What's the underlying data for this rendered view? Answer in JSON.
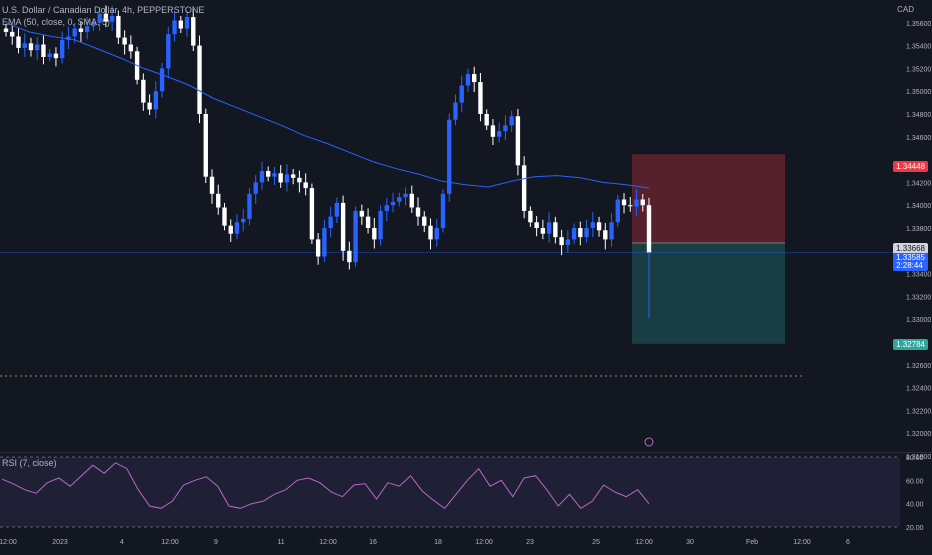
{
  "legend": {
    "main": "U.S. Dollar / Canadian Dollar, 4h, PEPPERSTONE",
    "ema": "EMA (50, close, 0, SMA, 5)",
    "rsi": "RSI (7, close)"
  },
  "price_axis": {
    "currency": "CAD",
    "ticks": [
      "1.35600",
      "1.35400",
      "1.35200",
      "1.35000",
      "1.34800",
      "1.34600",
      "1.34200",
      "1.34000",
      "1.33800",
      "1.33400",
      "1.33200",
      "1.33000",
      "1.32600",
      "1.32400",
      "1.32200",
      "1.32000",
      "1.31800"
    ]
  },
  "rsi_axis": {
    "ticks": [
      "80.00",
      "60.00",
      "40.00",
      "20.00"
    ]
  },
  "time_axis": {
    "ticks": [
      "12:00",
      "2023",
      "4",
      "12:00",
      "9",
      "11",
      "12:00",
      "16",
      "18",
      "12:00",
      "23",
      "25",
      "12:00",
      "30",
      "Feb",
      "12:00",
      "6"
    ]
  },
  "price_tags": {
    "stop": "1.34448",
    "entry": "1.33668",
    "current": "1.33585",
    "countdown": "2:28:44",
    "target": "1.32784"
  },
  "colors": {
    "background": "#131722",
    "up_candle": "#2962ff",
    "down_candle": "#ffffff",
    "ema_line": "#2962ff",
    "stop_zone": "#f23645",
    "target_zone": "#26a69a",
    "rsi_line": "#ba68c8",
    "rsi_band": "#7e57c2"
  },
  "chart_data": {
    "type": "candlestick",
    "symbol": "USDCAD",
    "timeframe": "4h",
    "ylim": [
      1.318,
      1.358
    ],
    "closes": [
      1.3552,
      1.3548,
      1.3538,
      1.3542,
      1.3536,
      1.3541,
      1.353,
      1.3533,
      1.3529,
      1.3545,
      1.3548,
      1.3555,
      1.3552,
      1.3557,
      1.356,
      1.3568,
      1.3561,
      1.3566,
      1.3547,
      1.3541,
      1.3535,
      1.351,
      1.349,
      1.3484,
      1.35,
      1.352,
      1.355,
      1.3562,
      1.3555,
      1.3565,
      1.354,
      1.348,
      1.3425,
      1.341,
      1.3398,
      1.3382,
      1.3375,
      1.3385,
      1.3388,
      1.341,
      1.342,
      1.343,
      1.3425,
      1.3428,
      1.342,
      1.3427,
      1.3424,
      1.342,
      1.3415,
      1.337,
      1.3355,
      1.338,
      1.339,
      1.3402,
      1.336,
      1.335,
      1.3395,
      1.339,
      1.338,
      1.337,
      1.3395,
      1.34,
      1.3403,
      1.3407,
      1.341,
      1.3398,
      1.339,
      1.3382,
      1.337,
      1.338,
      1.341,
      1.3475,
      1.349,
      1.3505,
      1.3515,
      1.3508,
      1.348,
      1.347,
      1.346,
      1.3465,
      1.347,
      1.3478,
      1.3435,
      1.3395,
      1.3385,
      1.338,
      1.3375,
      1.3385,
      1.3372,
      1.3365,
      1.337,
      1.338,
      1.3372,
      1.338,
      1.3385,
      1.3378,
      1.337,
      1.3385,
      1.3405,
      1.34,
      1.3399,
      1.3405,
      1.34,
      1.33585
    ],
    "ema50": [
      1.356,
      1.3552,
      1.3548,
      1.3545,
      1.3537,
      1.3529,
      1.352,
      1.3513,
      1.3505,
      1.3494,
      1.3486,
      1.3478,
      1.347,
      1.3461,
      1.3454,
      1.3446,
      1.3438,
      1.3432,
      1.3427,
      1.3421,
      1.3418,
      1.3416,
      1.3421,
      1.3425,
      1.3426,
      1.3424,
      1.342,
      1.3418,
      1.3415
    ],
    "rsi": [
      61,
      57,
      52,
      49,
      58,
      62,
      55,
      64,
      73,
      66,
      75,
      70,
      52,
      38,
      36,
      42,
      56,
      60,
      63,
      55,
      38,
      36,
      40,
      42,
      48,
      52,
      60,
      62,
      58,
      50,
      46,
      56,
      57,
      44,
      58,
      55,
      64,
      51,
      43,
      36,
      48,
      60,
      70,
      55,
      60,
      46,
      62,
      64,
      52,
      38,
      48,
      36,
      42,
      56,
      50,
      46,
      52,
      40
    ]
  },
  "trade_position": {
    "stop_loss": "1.34448",
    "entry": "1.33668",
    "take_profit": "1.32784"
  }
}
